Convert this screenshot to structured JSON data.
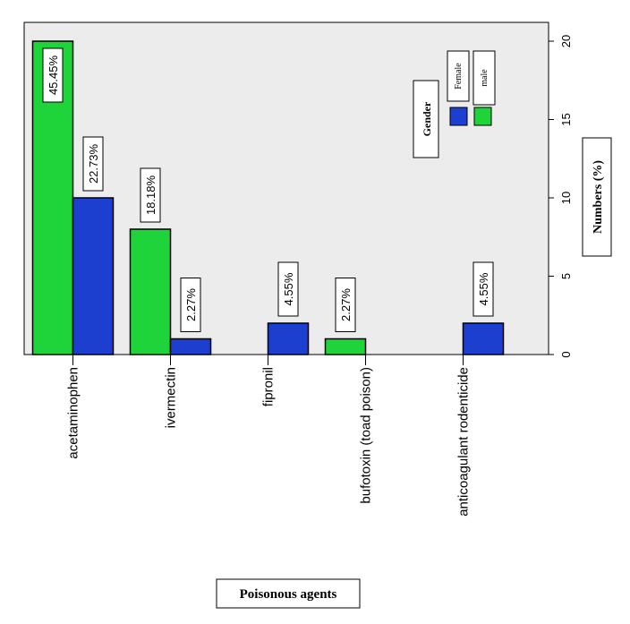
{
  "chart_data": {
    "type": "bar",
    "orientation": "rotated-90",
    "categories": [
      "acetaminophen",
      "ivermectin",
      "fipronil",
      "bufotoxin (toad poison)",
      "anticoagulant rodenticide"
    ],
    "series": [
      {
        "name": "male",
        "color": "#1ed43a",
        "values": [
          20,
          8,
          null,
          1,
          null
        ],
        "labels": [
          "45.45%",
          "18.18%",
          null,
          "2.27%",
          null
        ]
      },
      {
        "name": "Female",
        "color": "#1c3fcf",
        "values": [
          10,
          1,
          2,
          null,
          2
        ],
        "labels": [
          "22.73%",
          "2.27%",
          "4.55%",
          null,
          "4.55%"
        ]
      }
    ],
    "value_ticks": [
      0,
      5,
      10,
      15,
      20
    ],
    "ylim": [
      0,
      21.2
    ],
    "ylabel": "Numbers (%)",
    "xlabel": "Poisonous agents",
    "legend": {
      "title": "Gender",
      "entries": [
        {
          "label": "Female",
          "color": "#1c3fcf"
        },
        {
          "label": "male",
          "color": "#1ed43a"
        }
      ],
      "placement": "upper-right"
    },
    "grid": false,
    "plot_background": "#ececec"
  }
}
